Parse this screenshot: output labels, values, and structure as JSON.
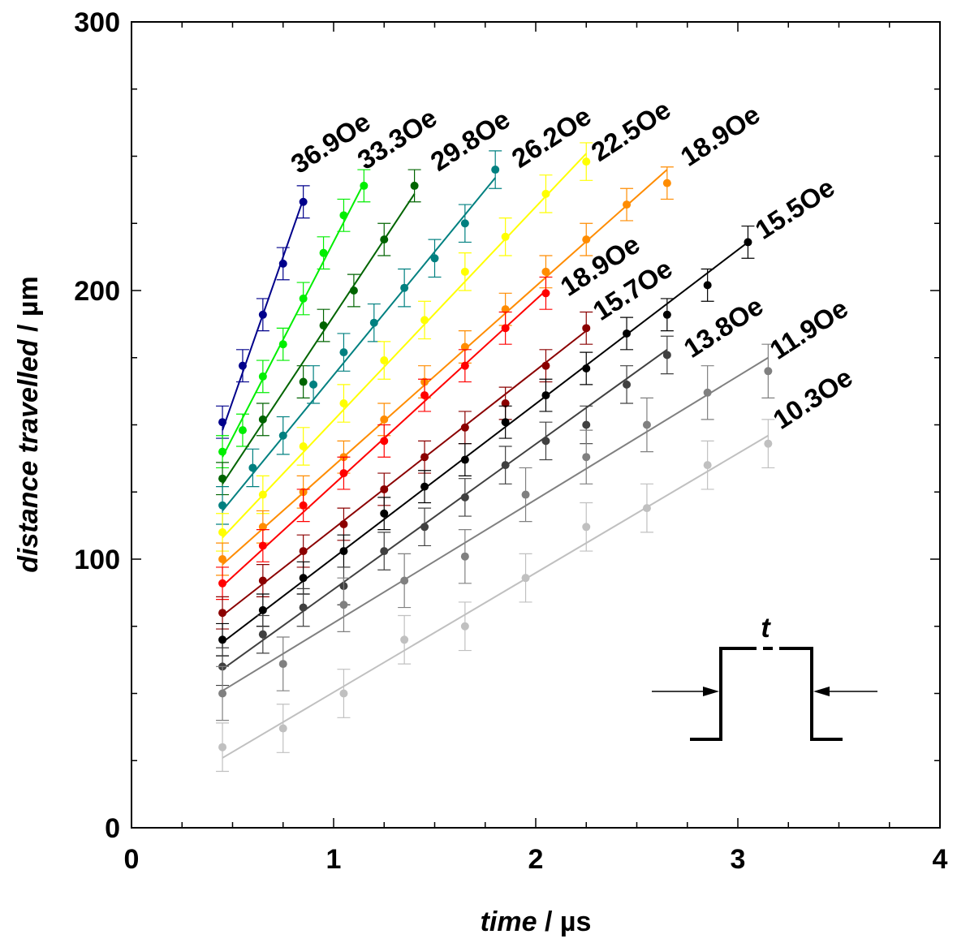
{
  "chart_data": {
    "type": "scatter",
    "title": "",
    "xlabel_italic": "time",
    "xlabel_unit": " / µs",
    "ylabel_italic": "distance travelled",
    "ylabel_unit": " / µm",
    "xlim": [
      0,
      4
    ],
    "ylim": [
      0,
      300
    ],
    "xticks": [
      0,
      1,
      2,
      3,
      4
    ],
    "yticks": [
      0,
      100,
      200,
      300
    ],
    "grid": false,
    "inset_label": "t",
    "series": [
      {
        "name": "36.9Oe",
        "color": "#00008B",
        "x": [
          0.45,
          0.55,
          0.65,
          0.75,
          0.85
        ],
        "y": [
          151,
          172,
          191,
          210,
          233
        ],
        "err": 6,
        "fit": [
          0.45,
          148,
          0.85,
          234
        ]
      },
      {
        "name": "33.3Oe",
        "color": "#00EE00",
        "x": [
          0.45,
          0.55,
          0.65,
          0.75,
          0.85,
          0.95,
          1.05,
          1.15
        ],
        "y": [
          140,
          148,
          168,
          180,
          197,
          214,
          228,
          239
        ],
        "err": 6,
        "fit": [
          0.45,
          138,
          1.15,
          240
        ]
      },
      {
        "name": "29.8Oe",
        "color": "#006400",
        "x": [
          0.45,
          0.65,
          0.85,
          0.95,
          1.1,
          1.25,
          1.4
        ],
        "y": [
          130,
          152,
          166,
          187,
          200,
          219,
          239
        ],
        "err": 6,
        "fit": [
          0.45,
          128,
          1.4,
          236
        ]
      },
      {
        "name": "26.2Oe",
        "color": "#008080",
        "x": [
          0.45,
          0.6,
          0.75,
          0.9,
          1.05,
          1.2,
          1.35,
          1.5,
          1.65,
          1.8
        ],
        "y": [
          120,
          134,
          146,
          165,
          177,
          188,
          201,
          212,
          225,
          245
        ],
        "err": 7,
        "fit": [
          0.45,
          118,
          1.8,
          242
        ]
      },
      {
        "name": "22.5Oe",
        "color": "#FFFF00",
        "x": [
          0.45,
          0.65,
          0.85,
          1.05,
          1.25,
          1.45,
          1.65,
          1.85,
          2.05,
          2.25
        ],
        "y": [
          110,
          124,
          142,
          158,
          174,
          189,
          207,
          220,
          236,
          248
        ],
        "err": 7,
        "fit": [
          0.45,
          108,
          2.25,
          251
        ]
      },
      {
        "name": "18.9Oe",
        "color": "#FF8C00",
        "x": [
          0.45,
          0.65,
          0.85,
          1.05,
          1.25,
          1.45,
          1.65,
          1.85,
          2.05,
          2.25,
          2.45,
          2.65
        ],
        "y": [
          100,
          112,
          125,
          138,
          152,
          166,
          179,
          193,
          207,
          219,
          232,
          240
        ],
        "err": 6,
        "fit": [
          0.45,
          98,
          2.65,
          245
        ]
      },
      {
        "name": "18.9Oe",
        "color": "#FF0000",
        "x": [
          0.45,
          0.65,
          0.85,
          1.05,
          1.25,
          1.45,
          1.65,
          1.85,
          2.05
        ],
        "y": [
          91,
          105,
          120,
          132,
          144,
          161,
          172,
          186,
          199
        ],
        "err": 6,
        "fit": [
          0.45,
          90,
          2.05,
          200
        ]
      },
      {
        "name": "15.7Oe",
        "color": "#8B0000",
        "x": [
          0.45,
          0.65,
          0.85,
          1.05,
          1.25,
          1.45,
          1.65,
          1.85,
          2.05,
          2.25
        ],
        "y": [
          80,
          92,
          103,
          113,
          126,
          138,
          149,
          158,
          172,
          186
        ],
        "err": 6,
        "fit": [
          0.45,
          79,
          2.25,
          185
        ]
      },
      {
        "name": "15.5Oe",
        "color": "#000000",
        "x": [
          0.45,
          0.65,
          0.85,
          1.05,
          1.25,
          1.45,
          1.65,
          1.85,
          2.05,
          2.25,
          2.45,
          2.65,
          2.85,
          3.05
        ],
        "y": [
          70,
          81,
          93,
          103,
          117,
          127,
          137,
          151,
          161,
          171,
          184,
          191,
          202,
          218
        ],
        "err": 6,
        "fit": [
          0.45,
          69,
          3.05,
          218
        ]
      },
      {
        "name": "13.8Oe",
        "color": "#404040",
        "x": [
          0.45,
          0.65,
          0.85,
          1.05,
          1.25,
          1.45,
          1.65,
          1.85,
          2.05,
          2.25,
          2.45,
          2.65
        ],
        "y": [
          60,
          72,
          82,
          90,
          103,
          112,
          123,
          135,
          144,
          150,
          165,
          176
        ],
        "err": 7,
        "fit": [
          0.45,
          59,
          2.65,
          178
        ]
      },
      {
        "name": "11.9Oe",
        "color": "#808080",
        "x": [
          0.45,
          0.75,
          1.05,
          1.35,
          1.65,
          1.95,
          2.25,
          2.55,
          2.85,
          3.15
        ],
        "y": [
          50,
          61,
          83,
          92,
          101,
          124,
          138,
          150,
          162,
          170
        ],
        "err": 10,
        "fit": [
          0.45,
          51,
          3.15,
          175
        ]
      },
      {
        "name": "10.3Oe",
        "color": "#C0C0C0",
        "x": [
          0.45,
          0.75,
          1.05,
          1.35,
          1.65,
          1.95,
          2.25,
          2.55,
          2.85,
          3.15
        ],
        "y": [
          30,
          37,
          50,
          70,
          75,
          93,
          112,
          119,
          135,
          143
        ],
        "err": 9,
        "fit": [
          0.45,
          26,
          3.15,
          146
        ]
      }
    ]
  }
}
